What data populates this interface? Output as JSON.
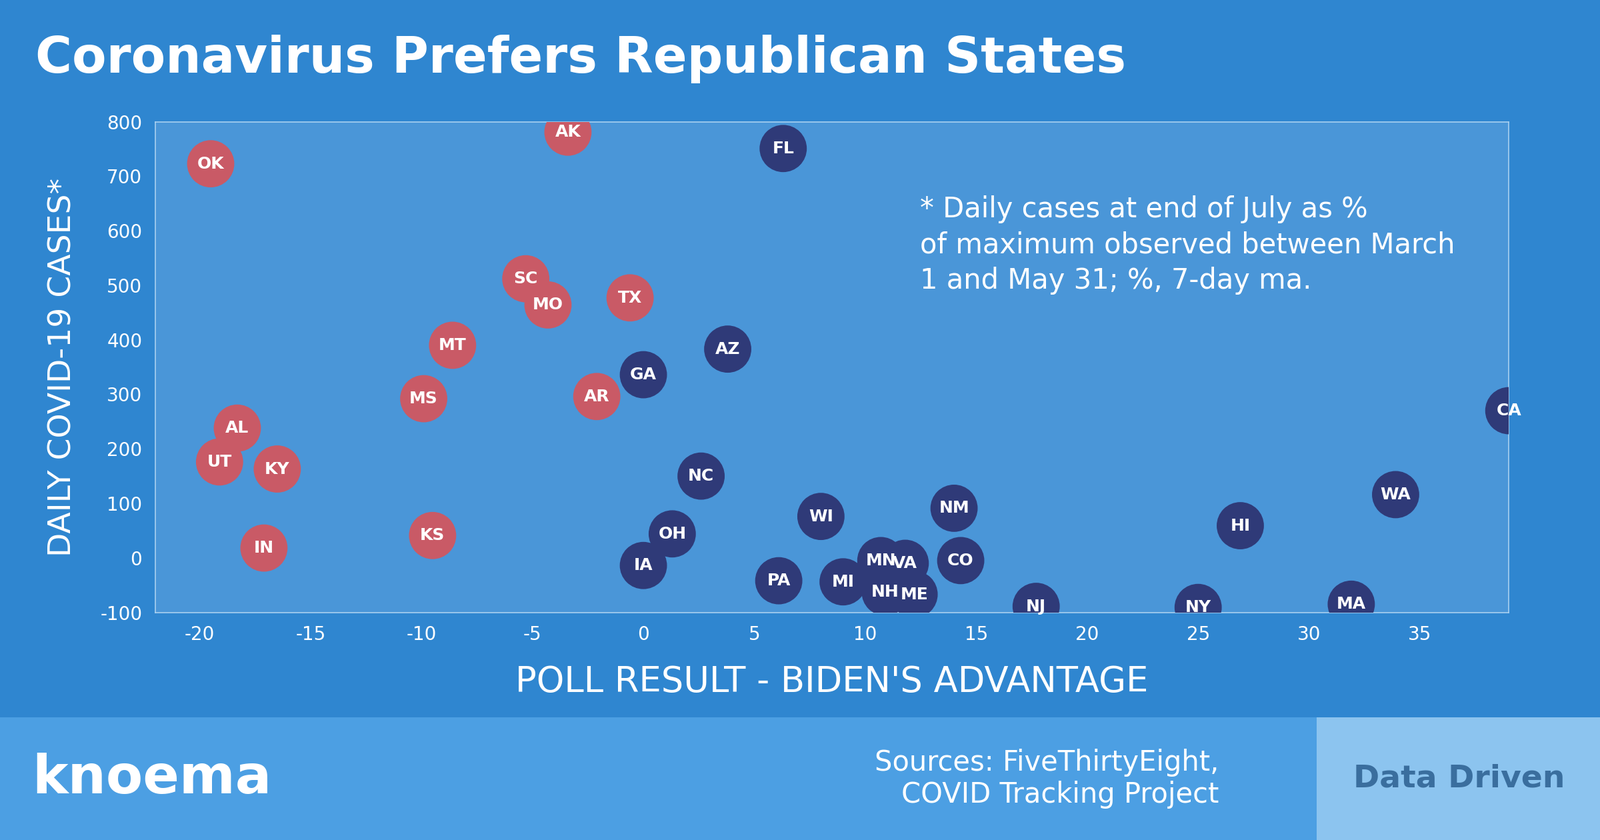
{
  "chart_data": {
    "type": "scatter",
    "title": "Coronavirus Prefers Republican States",
    "xlabel": "POLL RESULT - BIDEN'S ADVANTAGE",
    "ylabel": "DAILY COVID-19 CASES*",
    "annotation": "* Daily cases at end of July as % of maximum observed between March 1 and May 31; %, 7-day ma.",
    "source": "Sources: FiveThirtyEight, COVID Tracking Project",
    "brand": "knoema",
    "tagline": "Data Driven",
    "labels": [
      "OK",
      "AK",
      "FL",
      "SC",
      "MO",
      "TX",
      "MT",
      "AZ",
      "GA",
      "MS",
      "AR",
      "CA",
      "AL",
      "UT",
      "KY",
      "NC",
      "WA",
      "NM",
      "WI",
      "HI",
      "OH",
      "KS",
      "IN",
      "IA",
      "MN",
      "VA",
      "CO",
      "PA",
      "MI",
      "NH",
      "ME",
      "NJ",
      "NY",
      "MA"
    ],
    "x": [
      -19.5,
      -3.4,
      6.3,
      -5.3,
      -4.3,
      -0.6,
      -8.6,
      3.8,
      0.0,
      -9.9,
      -2.1,
      39.0,
      -18.3,
      -19.1,
      -16.5,
      2.6,
      33.9,
      14.0,
      8.0,
      26.9,
      1.3,
      -9.5,
      -17.1,
      0.0,
      10.7,
      11.8,
      14.3,
      6.1,
      9.0,
      10.9,
      12.2,
      17.7,
      25.0,
      31.9
    ],
    "values": [
      723,
      781,
      751,
      512,
      464,
      477,
      390,
      383,
      336,
      292,
      296,
      270,
      238,
      176,
      163,
      150,
      116,
      91,
      76,
      59,
      44,
      41,
      18,
      -14,
      -5,
      -10,
      -5,
      -42,
      -44,
      -63,
      -67,
      -89,
      -91,
      -85
    ],
    "colors": [
      "#c95a66",
      "#c95a66",
      "#2f3a78",
      "#c95a66",
      "#c95a66",
      "#c95a66",
      "#c95a66",
      "#2f3a78",
      "#2f3a78",
      "#c95a66",
      "#c95a66",
      "#2f3a78",
      "#c95a66",
      "#c95a66",
      "#c95a66",
      "#2f3a78",
      "#2f3a78",
      "#2f3a78",
      "#2f3a78",
      "#2f3a78",
      "#2f3a78",
      "#c95a66",
      "#c95a66",
      "#2f3a78",
      "#2f3a78",
      "#2f3a78",
      "#2f3a78",
      "#2f3a78",
      "#2f3a78",
      "#2f3a78",
      "#2f3a78",
      "#2f3a78",
      "#2f3a78",
      "#2f3a78"
    ],
    "xlim": [
      -22,
      39
    ],
    "ylim": [
      -100,
      800
    ],
    "xticks": [
      -20,
      -15,
      -10,
      -5,
      0,
      5,
      10,
      15,
      20,
      25,
      30,
      35
    ],
    "yticks": [
      -100,
      0,
      100,
      200,
      300,
      400,
      500,
      600,
      700,
      800
    ],
    "grid": false
  }
}
